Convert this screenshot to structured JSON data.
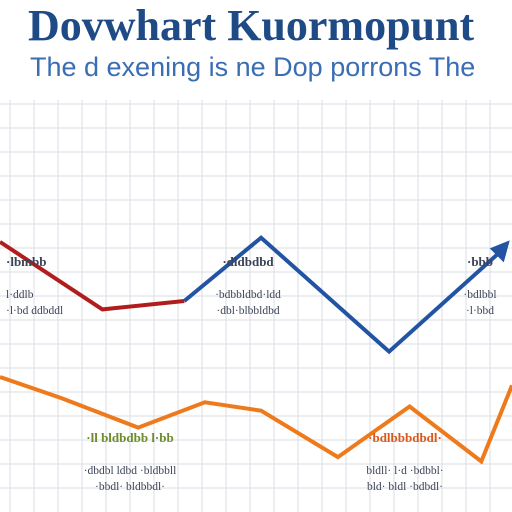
{
  "colors": {
    "title": "#1e4a86",
    "subtitle": "#3a6db3",
    "blue": "#2354a3",
    "red": "#b11d1d",
    "orange": "#ee7a1c",
    "annotation_dark": "#3b4356",
    "annotation_green": "#6d8d2c",
    "annotation_orange": "#d9581a",
    "grid": "#d9dee6"
  },
  "chart_data": {
    "type": "line",
    "title": "Dovwhart Kuormopunt",
    "subtitle": "The d exening is ne Dop porrons The",
    "grid": true,
    "xlim": [
      0,
      10
    ],
    "ylim": [
      0,
      10
    ],
    "x": [
      0,
      1,
      2,
      3,
      4,
      5,
      6,
      7,
      8,
      9,
      10
    ],
    "series": [
      {
        "color_key": "red",
        "x": [
          0,
          2,
          3.6
        ],
        "values": [
          6.4,
          4.8,
          5.0
        ]
      },
      {
        "color_key": "blue",
        "x": [
          3.6,
          5.1,
          7.6,
          9.8
        ],
        "values": [
          5.0,
          6.5,
          3.8,
          6.2
        ]
      },
      {
        "color_key": "orange",
        "x": [
          0,
          1.2,
          2.7,
          4.0,
          5.1,
          6.6,
          8.0,
          9.4,
          10
        ],
        "values": [
          3.2,
          2.7,
          2.0,
          2.6,
          2.4,
          1.3,
          2.5,
          1.2,
          3.0
        ]
      }
    ],
    "annotations": [
      {
        "title": "·lbmbb",
        "lines": [
          "l·ddlb",
          "·l·bd ddbddl"
        ],
        "color_key": "annotation_dark"
      },
      {
        "title": "·dldbdbd",
        "lines": [
          "·bdbbldbd·ldd",
          "·dbl·blbbldbd"
        ],
        "color_key": "annotation_dark"
      },
      {
        "title": "·bbb",
        "lines": [
          "·bdlbbl",
          "·l·bbd"
        ],
        "color_key": "annotation_dark"
      },
      {
        "title": "·ll bldbdbb l·bb",
        "lines": [
          "·dbdbl ldbd ·bldbbll",
          "·bbdl· bldbbdl·"
        ],
        "color_key": "annotation_green"
      },
      {
        "title": "·bdlbbbdbdl·",
        "lines": [
          "bldll· l·d ·bdbbl·",
          "bld· bldl ·bdbdl·"
        ],
        "color_key": "annotation_orange"
      }
    ]
  }
}
